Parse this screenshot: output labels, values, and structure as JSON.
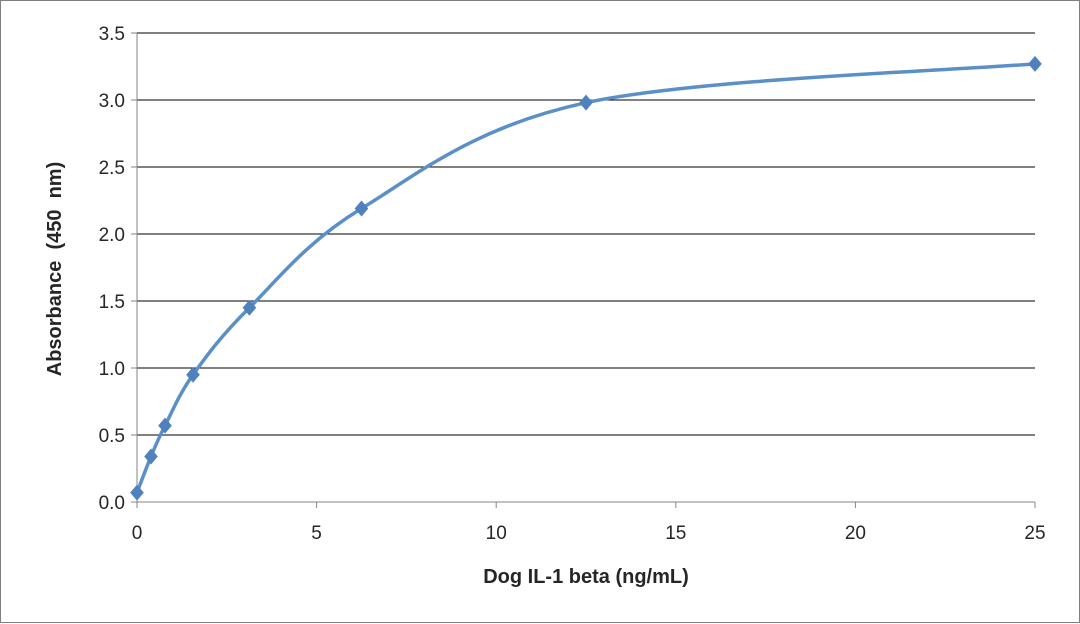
{
  "chart_data": {
    "type": "scatter",
    "title": "",
    "xlabel": "Dog IL-1 beta (ng/mL)",
    "ylabel": "Absorbance  (450  nm)",
    "xlim": [
      0,
      25
    ],
    "ylim": [
      0,
      3.5
    ],
    "xticks": [
      "0",
      "5",
      "10",
      "15",
      "20",
      "25"
    ],
    "yticks": [
      "0.0",
      "0.5",
      "1.0",
      "1.5",
      "2.0",
      "2.5",
      "3.0",
      "3.5"
    ],
    "grid": "horizontal",
    "legend": "none",
    "series": [
      {
        "x": [
          0,
          0.39,
          0.78,
          1.56,
          3.13,
          6.25,
          12.5,
          25
        ],
        "y": [
          0.07,
          0.34,
          0.57,
          0.95,
          1.45,
          2.19,
          2.98,
          3.27
        ],
        "line": "smooth",
        "marker": "diamond"
      }
    ],
    "colors": {
      "series": "#5b8fc7",
      "marker": "#4f81bd",
      "grid": "#000000",
      "axis": "#868686"
    }
  }
}
